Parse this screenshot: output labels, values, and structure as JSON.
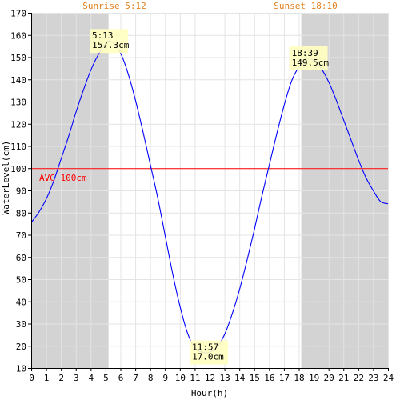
{
  "chart_data": {
    "type": "line",
    "xlabel": "Hour(h)",
    "ylabel": "WaterLevel(cm)",
    "xlim": [
      0,
      24
    ],
    "ylim": [
      10,
      170
    ],
    "x_ticks": [
      0,
      1,
      2,
      3,
      4,
      5,
      6,
      7,
      8,
      9,
      10,
      11,
      12,
      13,
      14,
      15,
      16,
      17,
      18,
      19,
      20,
      21,
      22,
      23,
      24
    ],
    "y_ticks": [
      10,
      20,
      30,
      40,
      50,
      60,
      70,
      80,
      90,
      100,
      110,
      120,
      130,
      140,
      150,
      160,
      170
    ],
    "grid": true,
    "sunrise_label": "Sunrise 5:12",
    "sunset_label": "Sunset 18:10",
    "sunrise_hour": 5.2,
    "sunset_hour": 18.1667,
    "night_color": "#d3d3d3",
    "line_color": "#0000ff",
    "average": {
      "value": 100,
      "label": "AVG 100cm",
      "color": "#ff0000"
    },
    "series": [
      {
        "x": [
          0,
          0.5,
          1,
          1.5,
          2,
          2.5,
          3,
          3.5,
          4,
          4.5,
          5,
          5.22,
          5.5,
          6,
          6.5,
          7,
          7.5,
          8,
          8.5,
          9,
          9.5,
          10,
          10.5,
          11,
          11.5,
          11.95,
          12.5,
          13,
          13.5,
          14,
          14.5,
          15,
          15.5,
          16,
          16.5,
          17,
          17.5,
          18,
          18.5,
          18.65,
          19,
          19.5,
          20,
          20.5,
          21,
          21.5,
          22,
          22.5,
          23,
          23.5,
          24
        ],
        "values": [
          75.5,
          80,
          86,
          94,
          104,
          114,
          125,
          135,
          144,
          151,
          156,
          157.3,
          156.5,
          152,
          143,
          131,
          117,
          102,
          87,
          70,
          53,
          38,
          26,
          19,
          17.2,
          17,
          19.5,
          25,
          34,
          45,
          58,
          72,
          87,
          101,
          115,
          128,
          139,
          145.5,
          149,
          149.5,
          148.5,
          145,
          139,
          131,
          122,
          113,
          104,
          96,
          90,
          85,
          84
        ]
      }
    ],
    "annotations": [
      {
        "time": "5:13",
        "value": "157.3cm",
        "x": 5.22,
        "y": 157.3
      },
      {
        "time": "11:57",
        "value": "17.0cm",
        "x": 11.95,
        "y": 17.0
      },
      {
        "time": "18:39",
        "value": "149.5cm",
        "x": 18.65,
        "y": 149.5
      }
    ]
  }
}
